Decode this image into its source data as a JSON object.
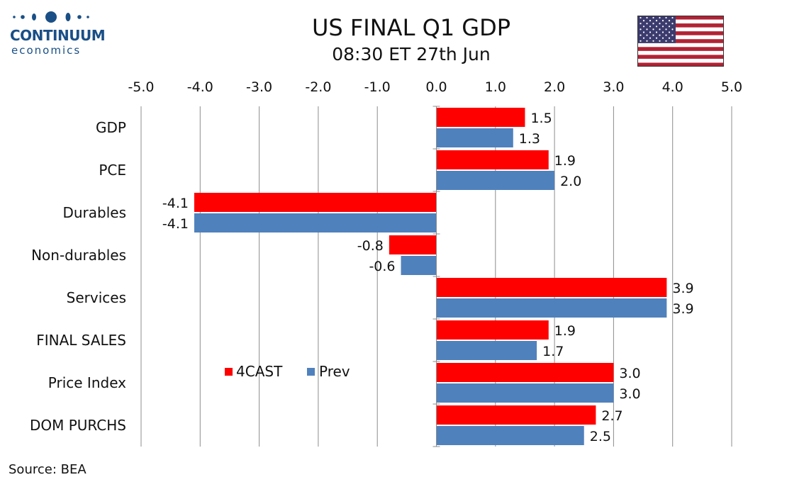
{
  "header": {
    "title": "US FINAL Q1 GDP",
    "subtitle": "08:30 ET 27th Jun"
  },
  "logo": {
    "name": "CONTINUUM",
    "sub": "economics"
  },
  "flag": {
    "icon": "us-flag-icon"
  },
  "source": "Source: BEA",
  "colors": {
    "forecast": "#ff0000",
    "prev": "#4f81bd"
  },
  "chart_data": {
    "type": "bar",
    "orientation": "horizontal",
    "title": "US FINAL Q1 GDP",
    "subtitle": "08:30 ET 27th Jun",
    "categories": [
      "GDP",
      "PCE",
      "Durables",
      "Non-durables",
      "Services",
      "FINAL SALES",
      "Price Index",
      "DOM PURCHS"
    ],
    "series": [
      {
        "name": "4CAST",
        "values": [
          1.5,
          1.9,
          -4.1,
          -0.8,
          3.9,
          1.9,
          3.0,
          2.7
        ],
        "labels": [
          "1.5",
          "1.9",
          "-4.1",
          "-0.8",
          "3.9",
          "1.9",
          "3.0",
          "2.7"
        ]
      },
      {
        "name": "Prev",
        "values": [
          1.3,
          2.0,
          -4.1,
          -0.6,
          3.9,
          1.7,
          3.0,
          2.5
        ],
        "labels": [
          "1.3",
          "2.0",
          "-4.1",
          "-0.6",
          "3.9",
          "1.7",
          "3.0",
          "2.5"
        ]
      }
    ],
    "xlim": [
      -5.0,
      5.0
    ],
    "xticks": [
      -5.0,
      -4.0,
      -3.0,
      -2.0,
      -1.0,
      0.0,
      1.0,
      2.0,
      3.0,
      4.0,
      5.0
    ],
    "xtick_labels": [
      "-5.0",
      "-4.0",
      "-3.0",
      "-2.0",
      "-1.0",
      "0.0",
      "1.0",
      "2.0",
      "3.0",
      "4.0",
      "5.0"
    ],
    "axis_position": "top",
    "grid": true,
    "legend": "inside-left"
  }
}
